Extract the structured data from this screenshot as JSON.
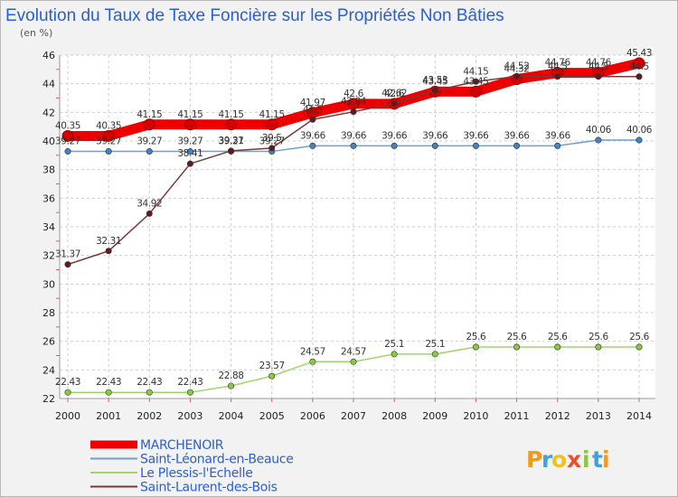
{
  "chart_data": {
    "type": "line",
    "title": "Evolution du Taux de Taxe Foncière sur les Propriétés Non Bâties",
    "ylabel": "(en %)",
    "xlabel": "",
    "ylim": [
      22,
      46
    ],
    "yticks": [
      22,
      24,
      26,
      28,
      30,
      32,
      34,
      36,
      38,
      40,
      42,
      44,
      46
    ],
    "categories": [
      "2000",
      "2001",
      "2002",
      "2003",
      "2004",
      "2005",
      "2006",
      "2007",
      "2008",
      "2009",
      "2010",
      "2011",
      "2012",
      "2013",
      "2014"
    ],
    "grid": true,
    "series": [
      {
        "name": "MARCHENOIR",
        "color": "#ee0000",
        "marker": "#d40000",
        "values": [
          40.35,
          40.35,
          41.15,
          41.15,
          41.15,
          41.15,
          41.97,
          42.6,
          42.6,
          43.45,
          43.45,
          44.32,
          44.76,
          44.76,
          45.43
        ],
        "labels": [
          "40.35",
          "40.35",
          "41.15",
          "41.15",
          "41.15",
          "41.15",
          "41.97",
          "42.6",
          "42.6",
          "43.45",
          "43.45",
          "44.32",
          "44.76",
          "44.76",
          "45.43"
        ]
      },
      {
        "name": "Saint-Léonard-en-Beauce",
        "color": "#6e9fd2",
        "marker": "#3f83c9",
        "values": [
          39.27,
          39.27,
          39.27,
          39.27,
          39.27,
          39.27,
          39.66,
          39.66,
          39.66,
          39.66,
          39.66,
          39.66,
          39.66,
          40.06,
          40.06
        ],
        "labels": [
          "39.27",
          "39.27",
          "39.27",
          "39.27",
          "39.27",
          "39.27",
          "39.66",
          "39.66",
          "39.66",
          "39.66",
          "39.66",
          "39.66",
          "39.66",
          "40.06",
          "40.06"
        ]
      },
      {
        "name": "Le Plessis-l'Echelle",
        "color": "#9ed56a",
        "marker": "#86cc3c",
        "values": [
          22.43,
          22.43,
          22.43,
          22.43,
          22.88,
          23.57,
          24.57,
          24.57,
          25.1,
          25.1,
          25.6,
          25.6,
          25.6,
          25.6,
          25.6
        ],
        "labels": [
          "22.43",
          "22.43",
          "22.43",
          "22.43",
          "22.88",
          "23.57",
          "24.57",
          "24.57",
          "25.1",
          "25.1",
          "25.6",
          "25.6",
          "25.6",
          "25.6",
          "25.6"
        ]
      },
      {
        "name": "Saint-Laurent-des-Bois",
        "color": "#7a3a3a",
        "marker": "#5e1d1d",
        "values": [
          31.37,
          32.31,
          34.92,
          38.41,
          39.31,
          39.5,
          41.5,
          42.04,
          42.62,
          43.53,
          44.15,
          44.52,
          44.5,
          44.5,
          44.5
        ],
        "labels": [
          "31.37",
          "32.31",
          "34.92",
          "38.41",
          "39.31",
          "39.5",
          "41.5",
          "42.04",
          "42.62",
          "43.53",
          "44.15",
          "44.52",
          "44.5",
          "44.5",
          "44.5"
        ]
      }
    ]
  },
  "logo": {
    "letters": [
      "P",
      "r",
      "o",
      "x",
      "i",
      "t",
      "i"
    ],
    "colors": [
      "#f29a1b",
      "#3fa3d8",
      "#f2c21b",
      "#e94f2a",
      "#8cc63f",
      "#3fa3d8",
      "#f29a1b"
    ]
  }
}
